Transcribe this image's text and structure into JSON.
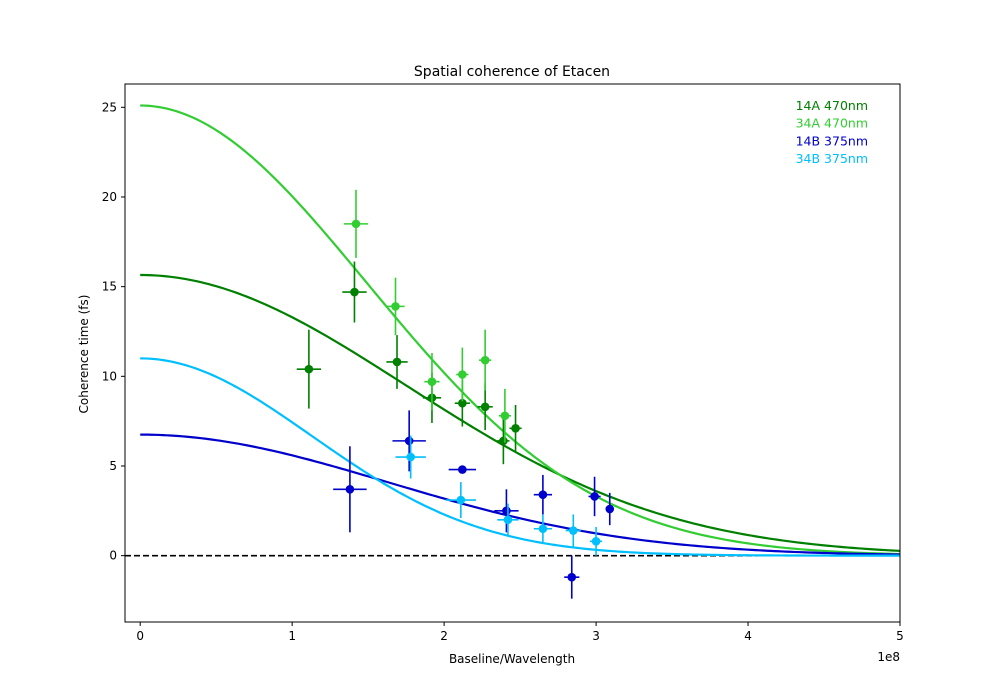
{
  "chart_data": {
    "type": "scatter",
    "title": "Spatial coherence of Etacen",
    "xlabel": "Baseline/Wavelength",
    "ylabel": "Coherence time (fs)",
    "x_offset_label": "1e8",
    "xlim": [
      -0.1,
      5.0
    ],
    "ylim": [
      -3.7,
      26.3
    ],
    "x_ticks": [
      0,
      1,
      2,
      3,
      4,
      5
    ],
    "y_ticks": [
      0,
      5,
      10,
      15,
      20,
      25
    ],
    "grid": false,
    "legend_position": "top-right",
    "reference_line": {
      "y": 0,
      "style": "dashed",
      "color": "#000000"
    },
    "series": [
      {
        "name": "14A 470nm",
        "color": "#008000",
        "points": [
          {
            "x": 1.11,
            "y": 10.4,
            "xerr": 0.08,
            "yerr": 2.2
          },
          {
            "x": 1.41,
            "y": 14.7,
            "xerr": 0.08,
            "yerr": 1.7
          },
          {
            "x": 1.69,
            "y": 10.8,
            "xerr": 0.07,
            "yerr": 1.5
          },
          {
            "x": 1.92,
            "y": 8.8,
            "xerr": 0.06,
            "yerr": 1.4
          },
          {
            "x": 2.12,
            "y": 8.5,
            "xerr": 0.05,
            "yerr": 1.3
          },
          {
            "x": 2.27,
            "y": 8.3,
            "xerr": 0.05,
            "yerr": 1.3
          },
          {
            "x": 2.39,
            "y": 6.4,
            "xerr": 0.04,
            "yerr": 1.3
          },
          {
            "x": 2.47,
            "y": 7.1,
            "xerr": 0.04,
            "yerr": 1.3
          }
        ],
        "fit": {
          "amplitude": 15.65,
          "sigma": 1.75
        }
      },
      {
        "name": "34A 470nm",
        "color": "#32cd32",
        "points": [
          {
            "x": 1.42,
            "y": 18.5,
            "xerr": 0.08,
            "yerr": 1.9
          },
          {
            "x": 1.68,
            "y": 13.9,
            "xerr": 0.06,
            "yerr": 1.6
          },
          {
            "x": 1.92,
            "y": 9.7,
            "xerr": 0.05,
            "yerr": 1.6
          },
          {
            "x": 2.12,
            "y": 10.1,
            "xerr": 0.04,
            "yerr": 1.5
          },
          {
            "x": 2.27,
            "y": 10.9,
            "xerr": 0.04,
            "yerr": 1.7
          },
          {
            "x": 2.4,
            "y": 7.8,
            "xerr": 0.04,
            "yerr": 1.5
          }
        ],
        "fit": {
          "amplitude": 25.1,
          "sigma": 1.49
        }
      },
      {
        "name": "14B 375nm",
        "color": "#0000cd",
        "points": [
          {
            "x": 1.38,
            "y": 3.7,
            "xerr": 0.11,
            "yerr": 2.4
          },
          {
            "x": 1.77,
            "y": 6.4,
            "xerr": 0.11,
            "yerr": 1.7
          },
          {
            "x": 2.12,
            "y": 4.8,
            "xerr": 0.09,
            "yerr": 0.2
          },
          {
            "x": 2.41,
            "y": 2.5,
            "xerr": 0.08,
            "yerr": 1.2
          },
          {
            "x": 2.65,
            "y": 3.4,
            "xerr": 0.06,
            "yerr": 1.1
          },
          {
            "x": 2.84,
            "y": -1.2,
            "xerr": 0.05,
            "yerr": 1.2
          },
          {
            "x": 2.99,
            "y": 3.3,
            "xerr": 0.04,
            "yerr": 1.1
          },
          {
            "x": 3.09,
            "y": 2.6,
            "xerr": 0.0,
            "yerr": 0.9
          }
        ],
        "fit": {
          "amplitude": 6.75,
          "sigma": 1.63
        }
      },
      {
        "name": "34B 375nm",
        "color": "#00bfff",
        "points": [
          {
            "x": 1.78,
            "y": 5.5,
            "xerr": 0.1,
            "yerr": 1.2
          },
          {
            "x": 2.11,
            "y": 3.1,
            "xerr": 0.1,
            "yerr": 1.0
          },
          {
            "x": 2.42,
            "y": 2.0,
            "xerr": 0.07,
            "yerr": 0.9
          },
          {
            "x": 2.65,
            "y": 1.5,
            "xerr": 0.06,
            "yerr": 0.8
          },
          {
            "x": 2.85,
            "y": 1.4,
            "xerr": 0.05,
            "yerr": 0.9
          },
          {
            "x": 3.0,
            "y": 0.8,
            "xerr": 0.04,
            "yerr": 0.8
          }
        ],
        "fit": {
          "amplitude": 11.0,
          "sigma": 1.13
        }
      }
    ]
  }
}
